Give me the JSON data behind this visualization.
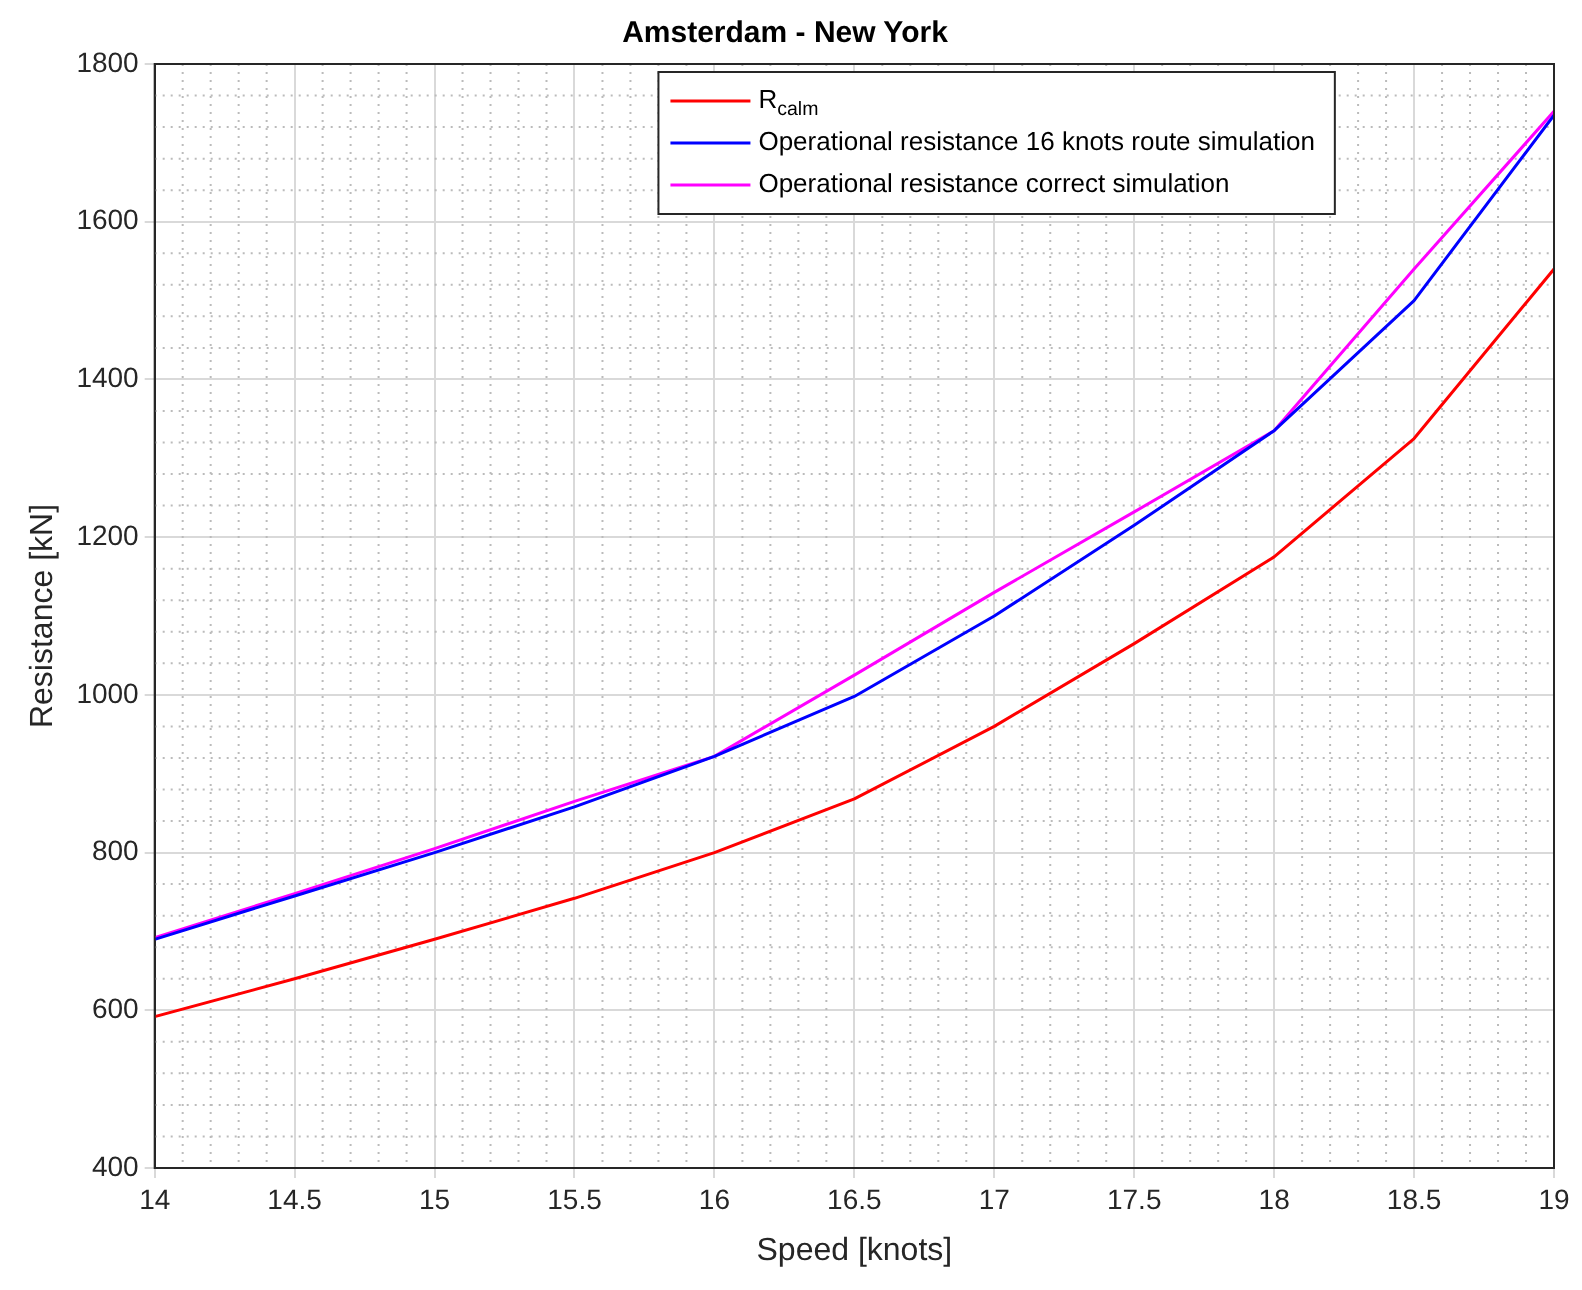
{
  "chart_data": {
    "type": "line",
    "title": "Amsterdam - New York",
    "xlabel": "Speed [knots]",
    "ylabel": "Resistance [kN]",
    "x": [
      14,
      14.5,
      15,
      15.5,
      16,
      16.5,
      17,
      17.5,
      18,
      18.5,
      19
    ],
    "series": [
      {
        "name": "R$_{calm}$",
        "color": "#ff0000",
        "values": [
          592,
          640,
          690,
          742,
          800,
          868,
          960,
          1065,
          1175,
          1325,
          1540
        ]
      },
      {
        "name": "Operational resistance 16 knots route simulation",
        "color": "#0000ff",
        "values": [
          690,
          745,
          800,
          858,
          922,
          998,
          1100,
          1215,
          1335,
          1500,
          1735
        ]
      },
      {
        "name": "Operational resistance correct simulation",
        "color": "#ff00ff",
        "values": [
          692,
          748,
          805,
          865,
          922,
          1025,
          1130,
          1232,
          1335,
          1540,
          1740
        ]
      }
    ],
    "xlim": [
      14,
      19
    ],
    "xticks": [
      14,
      14.5,
      15,
      15.5,
      16,
      16.5,
      17,
      17.5,
      18,
      18.5,
      19
    ],
    "ylim": [
      400,
      1800
    ],
    "yticks": [
      400,
      600,
      800,
      1000,
      1200,
      1400,
      1600,
      1800
    ],
    "grid": true,
    "legend": "top right",
    "line_style": "solid",
    "marker": "none"
  }
}
